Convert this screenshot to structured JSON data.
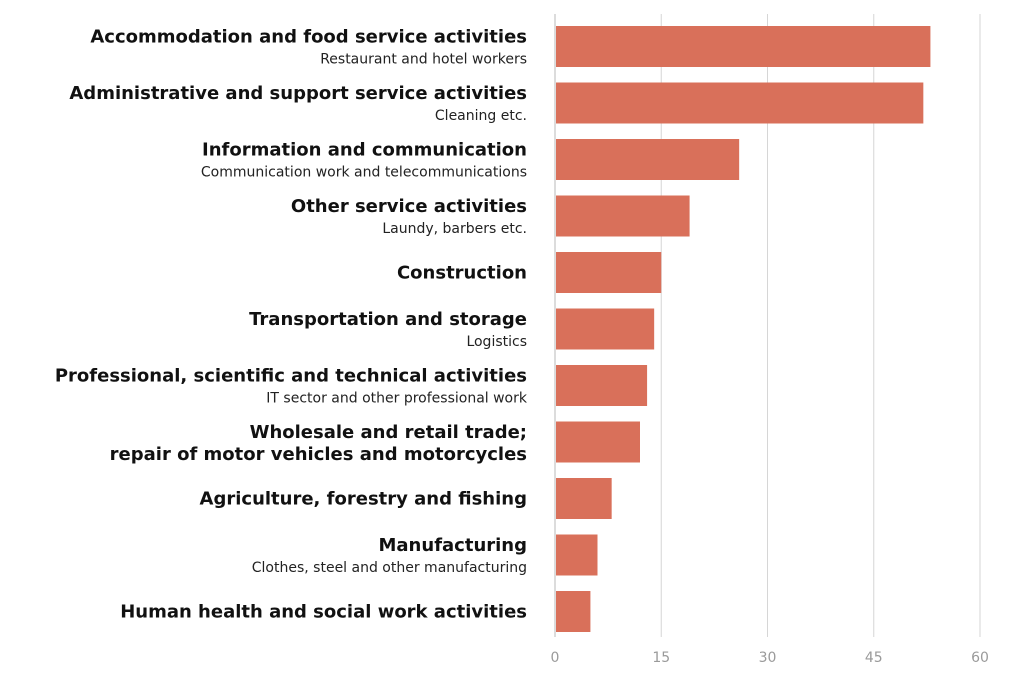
{
  "chart_data": {
    "type": "bar",
    "orientation": "horizontal",
    "categories": [
      {
        "label": [
          "Accommodation and food service activities"
        ],
        "sub": "Restaurant and hotel workers"
      },
      {
        "label": [
          "Administrative and support service activities"
        ],
        "sub": "Cleaning etc."
      },
      {
        "label": [
          "Information and communication"
        ],
        "sub": "Communication work and telecommunications"
      },
      {
        "label": [
          "Other service activities"
        ],
        "sub": "Laundy, barbers etc."
      },
      {
        "label": [
          "Construction"
        ],
        "sub": ""
      },
      {
        "label": [
          "Transportation and storage"
        ],
        "sub": "Logistics"
      },
      {
        "label": [
          "Professional, scientific and technical activities"
        ],
        "sub": "IT sector and other professional work"
      },
      {
        "label": [
          "Wholesale and retail trade;",
          "repair of motor vehicles and motorcycles"
        ],
        "sub": ""
      },
      {
        "label": [
          "Agriculture, forestry and fishing"
        ],
        "sub": ""
      },
      {
        "label": [
          "Manufacturing"
        ],
        "sub": "Clothes, steel and other manufacturing"
      },
      {
        "label": [
          "Human health and social work activities"
        ],
        "sub": ""
      }
    ],
    "values": [
      53,
      52,
      26,
      19,
      15,
      14,
      13,
      12,
      8,
      6,
      5
    ],
    "xlim": [
      0,
      60
    ],
    "xticks": [
      "0",
      "15",
      "30",
      "45",
      "60"
    ],
    "grid": true,
    "colors": {
      "bar": "#d9705a",
      "grid": "#d6d6d6",
      "axis": "#b8b8b8"
    }
  }
}
